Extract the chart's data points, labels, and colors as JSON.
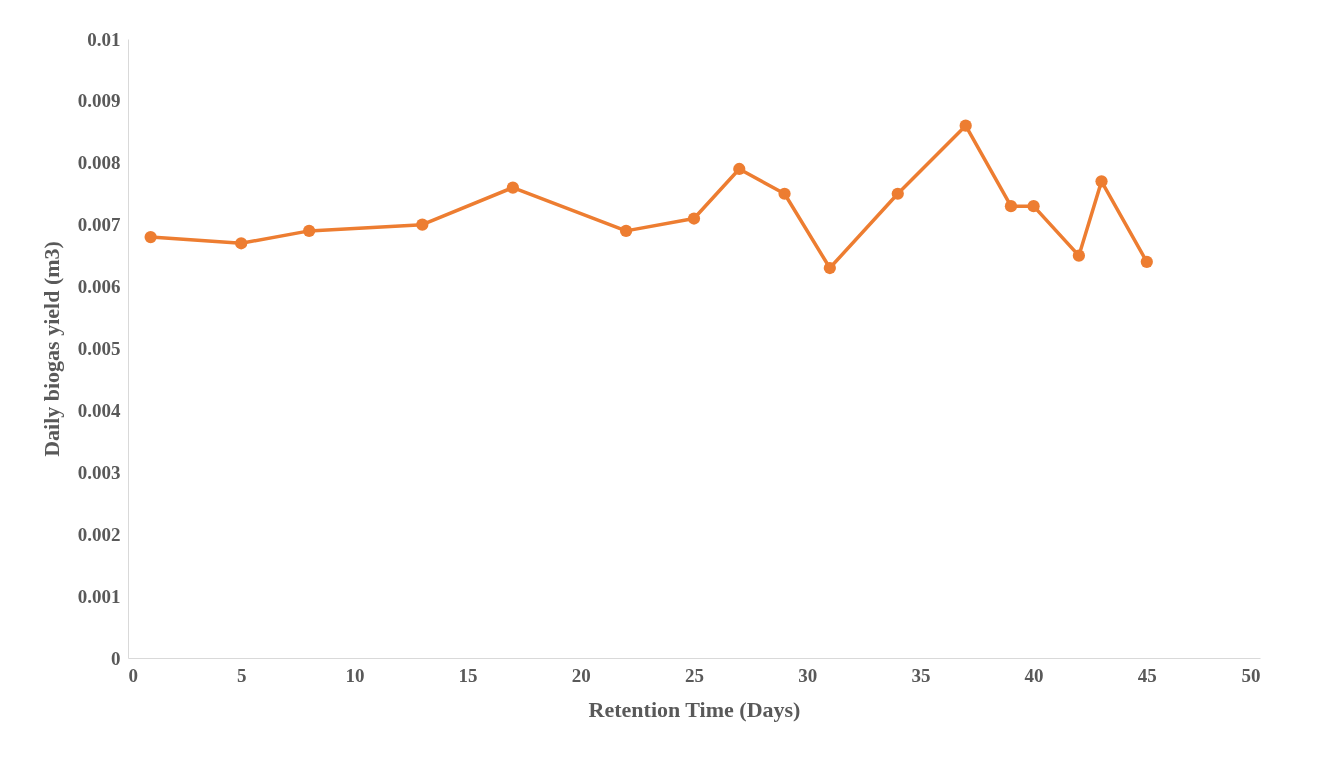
{
  "chart_data": {
    "type": "line",
    "xlabel": "Retention Time (Days)",
    "ylabel": "Daily biogas yield (m3)",
    "x": [
      1,
      5,
      8,
      13,
      17,
      22,
      25,
      27,
      29,
      31,
      34,
      37,
      39,
      40,
      42,
      43,
      45
    ],
    "series": [
      {
        "color": "#ed7d31",
        "values": [
          0.0068,
          0.0067,
          0.0069,
          0.007,
          0.0076,
          0.0069,
          0.0071,
          0.0079,
          0.0075,
          0.0063,
          0.0075,
          0.0086,
          0.0073,
          0.0073,
          0.0065,
          0.0077,
          0.0064
        ]
      }
    ],
    "xlim": [
      0,
      50
    ],
    "xticks": [
      0,
      5,
      10,
      15,
      20,
      25,
      30,
      35,
      40,
      45,
      50
    ],
    "ylim": [
      0,
      0.01
    ],
    "yticks": [
      0,
      0.001,
      0.002,
      0.003,
      0.004,
      0.005,
      0.006,
      0.007,
      0.008,
      0.009,
      0.01
    ],
    "grid": false,
    "marker": "circle",
    "line_style": "solid"
  }
}
